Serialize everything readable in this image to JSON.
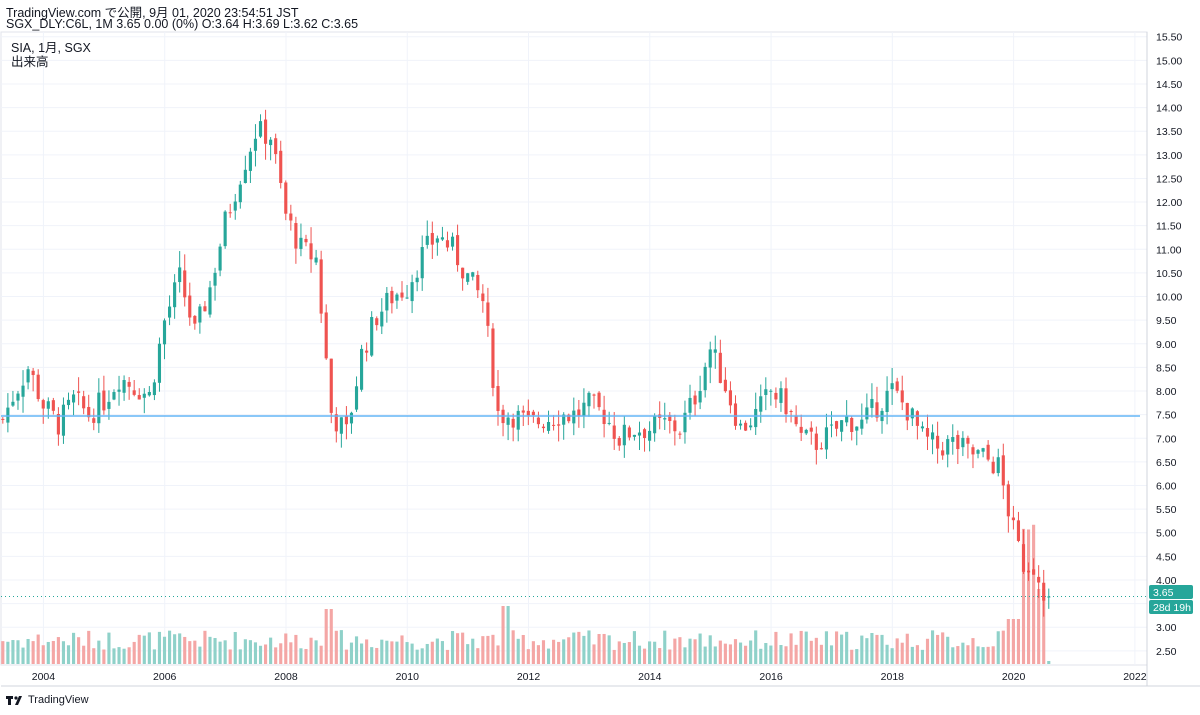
{
  "header": {
    "line1": "TradingView.com で公開, 9月 01, 2020 23:54:51 JST",
    "line2": "SGX_DLY:C6L, 1M 3.65 0.00 (0%) O:3.64 H:3.69 L:3.62 C:3.65"
  },
  "footer": {
    "brand": "TradingView"
  },
  "colors": {
    "up": "#26a69a",
    "down": "#ef5350",
    "vol_up": "#8fd1c9",
    "vol_down": "#f4a6a5",
    "hline": "#64b5f6",
    "grid": "#f0f3fa"
  },
  "chart_data": {
    "type": "candlestick",
    "title": "SIA, 1月, SGX",
    "subtitle": "出来高",
    "y_axis": {
      "ticks": [
        "2.50",
        "3.00",
        "3.50",
        "4.00",
        "4.50",
        "5.00",
        "5.50",
        "6.00",
        "6.50",
        "7.00",
        "7.50",
        "8.00",
        "8.50",
        "9.00",
        "9.50",
        "10.00",
        "10.50",
        "11.00",
        "11.50",
        "12.00",
        "12.50",
        "13.00",
        "13.50",
        "14.00",
        "14.50",
        "15.00",
        "15.50"
      ],
      "range": [
        2.2,
        15.6
      ]
    },
    "x_axis": {
      "ticks": [
        "2004",
        "2006",
        "2008",
        "2010",
        "2012",
        "2014",
        "2016",
        "2018",
        "2020",
        "2022"
      ],
      "range": [
        2003.3,
        2022.2
      ]
    },
    "last_price_label": "3.65",
    "countdown_label": "28d 19h",
    "horizontal_line": 7.47,
    "last_close": 3.65,
    "price_path": [
      [
        2003.33,
        7.4
      ],
      [
        2003.5,
        7.9
      ],
      [
        2003.75,
        8.5
      ],
      [
        2004.0,
        7.7
      ],
      [
        2004.25,
        7.3
      ],
      [
        2004.5,
        7.8
      ],
      [
        2004.75,
        7.5
      ],
      [
        2005.0,
        7.8
      ],
      [
        2005.25,
        8.3
      ],
      [
        2005.5,
        8.1
      ],
      [
        2005.75,
        7.9
      ],
      [
        2006.0,
        9.5
      ],
      [
        2006.25,
        10.4
      ],
      [
        2006.5,
        9.2
      ],
      [
        2006.75,
        10.2
      ],
      [
        2007.0,
        11.6
      ],
      [
        2007.25,
        12.6
      ],
      [
        2007.5,
        13.5
      ],
      [
        2007.75,
        13.4
      ],
      [
        2008.0,
        11.7
      ],
      [
        2008.25,
        11.0
      ],
      [
        2008.5,
        10.8
      ],
      [
        2008.75,
        7.5
      ],
      [
        2009.0,
        7.1
      ],
      [
        2009.25,
        8.8
      ],
      [
        2009.5,
        9.6
      ],
      [
        2009.75,
        10.0
      ],
      [
        2010.0,
        10.2
      ],
      [
        2010.25,
        10.9
      ],
      [
        2010.5,
        11.3
      ],
      [
        2010.75,
        11.0
      ],
      [
        2011.0,
        10.4
      ],
      [
        2011.25,
        9.9
      ],
      [
        2011.5,
        7.5
      ],
      [
        2011.75,
        7.5
      ],
      [
        2012.0,
        7.3
      ],
      [
        2012.25,
        7.4
      ],
      [
        2012.5,
        7.5
      ],
      [
        2012.75,
        7.5
      ],
      [
        2013.0,
        7.7
      ],
      [
        2013.25,
        7.5
      ],
      [
        2013.5,
        7.0
      ],
      [
        2013.75,
        7.2
      ],
      [
        2014.0,
        7.2
      ],
      [
        2014.25,
        7.3
      ],
      [
        2014.5,
        7.2
      ],
      [
        2014.75,
        7.9
      ],
      [
        2015.0,
        8.9
      ],
      [
        2015.25,
        8.1
      ],
      [
        2015.5,
        7.2
      ],
      [
        2015.75,
        7.5
      ],
      [
        2016.0,
        8.0
      ],
      [
        2016.25,
        7.7
      ],
      [
        2016.5,
        7.0
      ],
      [
        2016.75,
        6.9
      ],
      [
        2017.0,
        7.1
      ],
      [
        2017.25,
        7.4
      ],
      [
        2017.5,
        7.3
      ],
      [
        2017.75,
        7.7
      ],
      [
        2018.0,
        8.0
      ],
      [
        2018.25,
        7.6
      ],
      [
        2018.5,
        7.0
      ],
      [
        2018.75,
        6.8
      ],
      [
        2019.0,
        6.9
      ],
      [
        2019.25,
        6.7
      ],
      [
        2019.5,
        6.6
      ],
      [
        2019.75,
        6.4
      ],
      [
        2020.0,
        5.0
      ],
      [
        2020.25,
        4.0
      ],
      [
        2020.42,
        3.9
      ],
      [
        2020.58,
        3.65
      ]
    ]
  }
}
